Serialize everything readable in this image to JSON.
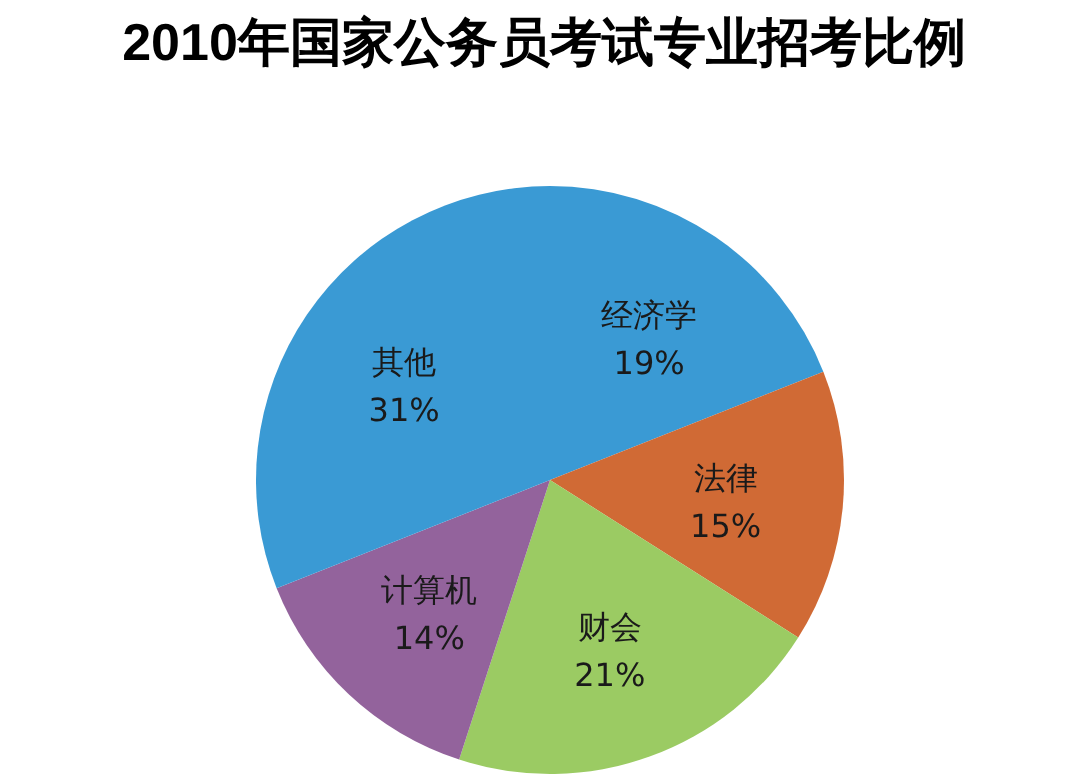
{
  "chart_data": {
    "type": "pie",
    "title": "2010年国家公务员考试专业招考比例",
    "categories": [
      "经济学",
      "法律",
      "财会",
      "计算机",
      "其他"
    ],
    "values": [
      19,
      15,
      21,
      14,
      31
    ],
    "value_labels": [
      "19%",
      "15%",
      "21%",
      "14%",
      "31%"
    ],
    "colors": [
      "#3a9ad4",
      "#d06a35",
      "#9bcb63",
      "#93639c",
      "#3a9ad4"
    ],
    "legend": false
  }
}
